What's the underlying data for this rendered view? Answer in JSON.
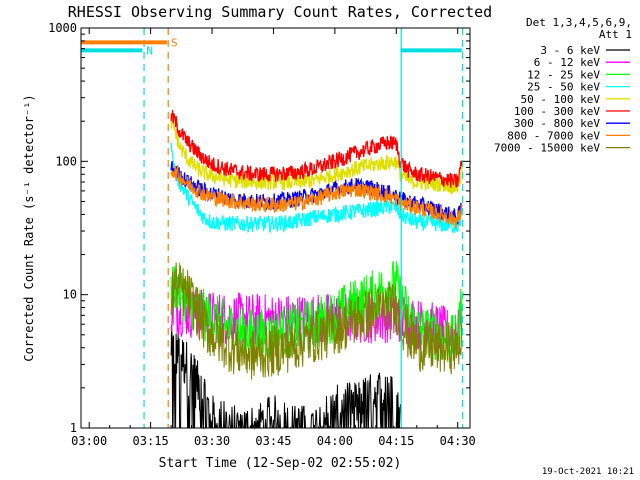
{
  "chart_data": {
    "type": "line",
    "title": "RHESSI Observing Summary Count Rates, Corrected",
    "xlabel": "Start Time (12-Sep-02 02:55:02)",
    "ylabel": "Corrected Count Rate (s⁻¹ detector⁻¹)",
    "yscale": "log",
    "ylim": [
      1,
      1000
    ],
    "xlim_minutes": [
      -2,
      93
    ],
    "x_ticks": [
      {
        "m": 0,
        "label": "03:00"
      },
      {
        "m": 15,
        "label": "03:15"
      },
      {
        "m": 30,
        "label": "03:30"
      },
      {
        "m": 45,
        "label": "03:45"
      },
      {
        "m": 60,
        "label": "04:00"
      },
      {
        "m": 75,
        "label": "04:15"
      },
      {
        "m": 90,
        "label": "04:30"
      }
    ],
    "y_ticks": [
      {
        "v": 1,
        "label": "1"
      },
      {
        "v": 10,
        "label": "10"
      },
      {
        "v": 100,
        "label": "100"
      },
      {
        "v": 1000,
        "label": "1000"
      }
    ],
    "legend_header": [
      "Det 1,3,4,5,6,9,",
      "Att 1"
    ],
    "legend_position": "right",
    "timestamp": "19-Oct-2021 10:21",
    "flags": [
      {
        "label": "S",
        "color": "#ff8000",
        "x_start": -2,
        "x_end": 19,
        "y": 780
      },
      {
        "label": "N",
        "color": "#00e0e0",
        "x_start": -2,
        "x_end": 13,
        "y": 680
      },
      {
        "label": "",
        "color": "#00e0e0",
        "x_start": 76,
        "x_end": 91,
        "y": 680
      }
    ],
    "vlines": [
      {
        "m": 13.4,
        "color": "#00e0e0",
        "dash": true
      },
      {
        "m": 19.3,
        "color": "#ff8000",
        "dash": true
      },
      {
        "m": 76.2,
        "color": "#00e0e0",
        "dash": false
      },
      {
        "m": 91.2,
        "color": "#00e0e0",
        "dash": true
      }
    ],
    "series": [
      {
        "name": "3 - 6 keV",
        "color": "#000000",
        "style": "spiky",
        "x": [
          20,
          22,
          24,
          27,
          28,
          30,
          35,
          40,
          45,
          50,
          55,
          60,
          65,
          70,
          73,
          74.5,
          76
        ],
        "y": [
          4.0,
          3.5,
          3.0,
          2.0,
          1.6,
          1.2,
          1.0,
          1.0,
          1.2,
          1.0,
          1.0,
          1.4,
          1.5,
          1.8,
          2.0,
          1.5,
          1.2
        ]
      },
      {
        "name": "6 - 12 keV",
        "color": "#ff00ff",
        "style": "noisy",
        "x": [
          20,
          22,
          24,
          26,
          28,
          30,
          35,
          40,
          45,
          50,
          55,
          60,
          65,
          70,
          75,
          78,
          80,
          85,
          88,
          90,
          91
        ],
        "y": [
          8.0,
          7.8,
          7.5,
          7.2,
          7.0,
          6.8,
          6.6,
          6.5,
          6.5,
          6.5,
          6.5,
          6.6,
          6.7,
          6.8,
          6.9,
          6.5,
          6.0,
          5.5,
          5.0,
          4.8,
          7.0
        ]
      },
      {
        "name": "12 - 25 keV",
        "color": "#00ff00",
        "style": "noisy",
        "x": [
          20,
          21,
          22,
          24,
          26,
          28,
          30,
          35,
          40,
          45,
          50,
          55,
          60,
          65,
          70,
          73,
          75,
          76,
          78,
          80,
          85,
          88,
          90,
          91
        ],
        "y": [
          10.0,
          12.0,
          11.0,
          9.0,
          8.0,
          7.0,
          6.5,
          5.5,
          5.0,
          5.0,
          5.5,
          6.0,
          7.0,
          8.5,
          10.0,
          11.5,
          12.0,
          9.0,
          7.0,
          5.5,
          5.0,
          4.5,
          4.5,
          9.0
        ]
      },
      {
        "name": "25 - 50 keV",
        "color": "#00ffff",
        "style": "smooth",
        "x": [
          20,
          20.5,
          22,
          24,
          26,
          28,
          30,
          35,
          40,
          45,
          50,
          55,
          60,
          65,
          70,
          73,
          75,
          76,
          78,
          80,
          85,
          88,
          90,
          91
        ],
        "y": [
          150,
          95,
          70,
          55,
          45,
          38,
          35,
          34,
          34,
          34,
          35,
          38,
          40,
          42,
          44,
          46,
          45,
          40,
          37,
          35,
          34,
          33,
          33,
          40
        ]
      },
      {
        "name": "50 - 100 keV",
        "color": "#e0e000",
        "style": "smooth",
        "x": [
          20,
          21,
          22,
          24,
          26,
          28,
          30,
          35,
          40,
          45,
          50,
          55,
          60,
          65,
          70,
          73,
          75,
          76,
          78,
          80,
          85,
          88,
          90,
          91
        ],
        "y": [
          200,
          170,
          130,
          105,
          90,
          82,
          78,
          72,
          70,
          70,
          70,
          72,
          80,
          88,
          95,
          98,
          100,
          80,
          72,
          70,
          68,
          66,
          64,
          85
        ]
      },
      {
        "name": "100 - 300 keV",
        "color": "#ff0000",
        "style": "smooth",
        "x": [
          20,
          21,
          22,
          24,
          26,
          28,
          30,
          35,
          40,
          45,
          50,
          55,
          60,
          65,
          70,
          73,
          75,
          76,
          78,
          80,
          85,
          88,
          90,
          91
        ],
        "y": [
          220,
          200,
          170,
          140,
          120,
          105,
          95,
          85,
          80,
          80,
          82,
          88,
          100,
          115,
          130,
          138,
          135,
          100,
          85,
          80,
          75,
          72,
          70,
          100
        ]
      },
      {
        "name": "300 - 800 keV",
        "color": "#0000ff",
        "style": "smooth",
        "x": [
          20,
          22,
          24,
          26,
          28,
          30,
          35,
          40,
          45,
          50,
          55,
          60,
          65,
          70,
          73,
          75,
          76,
          78,
          80,
          85,
          88,
          90,
          91
        ],
        "y": [
          90,
          80,
          70,
          65,
          60,
          57,
          52,
          50,
          50,
          52,
          56,
          62,
          66,
          62,
          58,
          55,
          52,
          50,
          48,
          43,
          40,
          38,
          45
        ]
      },
      {
        "name": "800 - 7000 keV",
        "color": "#ff8000",
        "style": "smooth",
        "x": [
          20,
          22,
          24,
          26,
          28,
          30,
          35,
          40,
          45,
          50,
          55,
          60,
          65,
          70,
          73,
          75,
          76,
          78,
          80,
          85,
          88,
          90,
          91
        ],
        "y": [
          88,
          78,
          68,
          62,
          57,
          54,
          50,
          48,
          47,
          48,
          52,
          58,
          62,
          58,
          55,
          52,
          49,
          47,
          45,
          41,
          38,
          36,
          42
        ]
      },
      {
        "name": "7000 - 15000 keV",
        "color": "#808000",
        "style": "noisy",
        "x": [
          20,
          21,
          22,
          24,
          26,
          28,
          30,
          35,
          40,
          45,
          50,
          55,
          60,
          65,
          70,
          73,
          75,
          76,
          78,
          80,
          85,
          88,
          90,
          91
        ],
        "y": [
          10.0,
          12.0,
          11.0,
          10.0,
          8.0,
          6.0,
          5.0,
          4.0,
          3.5,
          3.8,
          4.2,
          4.8,
          5.5,
          6.5,
          7.5,
          8.0,
          8.0,
          6.5,
          5.0,
          4.2,
          4.0,
          4.0,
          4.0,
          5.0
        ]
      }
    ]
  }
}
